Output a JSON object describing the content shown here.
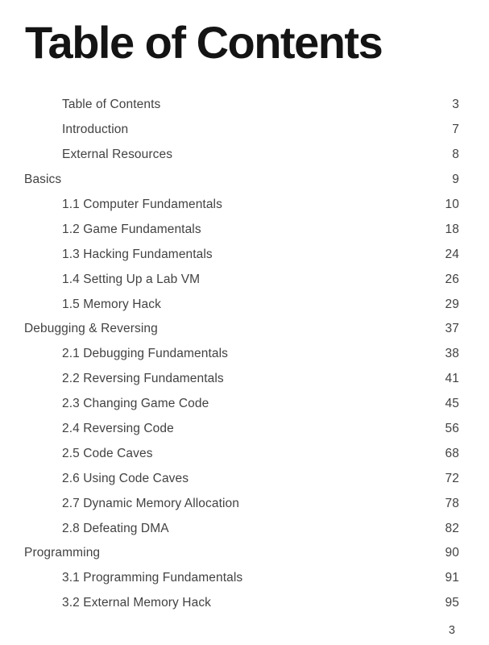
{
  "page": {
    "title": "Table of Contents",
    "folio": "3"
  },
  "toc": {
    "entries": [
      {
        "label": "Table of Contents",
        "page": "3",
        "level": 1
      },
      {
        "label": "Introduction",
        "page": "7",
        "level": 1
      },
      {
        "label": "External Resources",
        "page": "8",
        "level": 1
      },
      {
        "label": "Basics",
        "page": "9",
        "level": 0
      },
      {
        "label": "1.1 Computer Fundamentals",
        "page": "10",
        "level": 1
      },
      {
        "label": "1.2 Game Fundamentals",
        "page": "18",
        "level": 1
      },
      {
        "label": "1.3 Hacking Fundamentals",
        "page": "24",
        "level": 1
      },
      {
        "label": "1.4 Setting Up a Lab VM",
        "page": "26",
        "level": 1
      },
      {
        "label": "1.5 Memory Hack",
        "page": "29",
        "level": 1
      },
      {
        "label": "Debugging & Reversing",
        "page": "37",
        "level": 0
      },
      {
        "label": "2.1 Debugging Fundamentals",
        "page": "38",
        "level": 1
      },
      {
        "label": "2.2 Reversing Fundamentals",
        "page": "41",
        "level": 1
      },
      {
        "label": "2.3 Changing Game Code",
        "page": "45",
        "level": 1
      },
      {
        "label": "2.4 Reversing Code",
        "page": "56",
        "level": 1
      },
      {
        "label": "2.5 Code Caves",
        "page": "68",
        "level": 1
      },
      {
        "label": "2.6 Using Code Caves",
        "page": "72",
        "level": 1
      },
      {
        "label": "2.7 Dynamic Memory Allocation",
        "page": "78",
        "level": 1
      },
      {
        "label": "2.8 Defeating DMA",
        "page": "82",
        "level": 1
      },
      {
        "label": "Programming",
        "page": "90",
        "level": 0
      },
      {
        "label": "3.1 Programming Fundamentals",
        "page": "91",
        "level": 1
      },
      {
        "label": "3.2 External Memory Hack",
        "page": "95",
        "level": 1
      }
    ]
  }
}
